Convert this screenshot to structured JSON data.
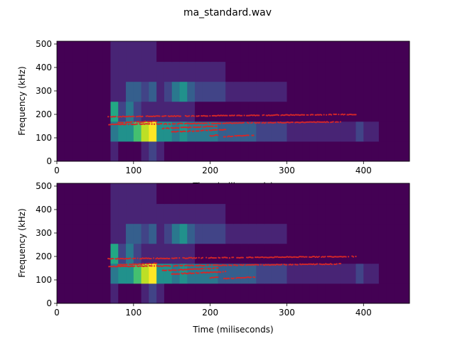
{
  "figure": {
    "title": "ma_standard.wav"
  },
  "colors": {
    "background_cell": "#440154",
    "overlay_points": "#d62728",
    "viridis": [
      "#440154",
      "#482475",
      "#414487",
      "#355f8d",
      "#2a788e",
      "#21918c",
      "#22a884",
      "#44bf70",
      "#7ad151",
      "#bddf26",
      "#fde725"
    ]
  },
  "chart_data": [
    {
      "type": "heatmap",
      "title": "",
      "xlabel": "Time (miliseconds)",
      "ylabel": "Frequency (kHz)",
      "xlim": [
        0,
        460
      ],
      "ylim": [
        0,
        512
      ],
      "xticks": [
        0,
        100,
        200,
        300,
        400
      ],
      "yticks": [
        0,
        100,
        200,
        300,
        400,
        500
      ],
      "grid": false,
      "time_bins": [
        5,
        15,
        25,
        35,
        45,
        55,
        65,
        75,
        85,
        95,
        105,
        115,
        125,
        135,
        145,
        155,
        165,
        175,
        185,
        195,
        205,
        215,
        225,
        235,
        245,
        255,
        265,
        275,
        285,
        295,
        305,
        315,
        325,
        335,
        345,
        355,
        365,
        375,
        385,
        395,
        405,
        415,
        425,
        435,
        445,
        455
      ],
      "freq_edges": [
        0,
        85,
        170,
        255,
        340,
        425,
        512
      ],
      "intensity": [
        [
          0,
          0,
          0,
          0,
          0,
          0,
          0,
          0.06,
          0.04,
          0.04,
          0.04,
          0.06,
          0.2,
          0.08,
          0.04,
          0.04,
          0.04,
          0.04,
          0.04,
          0.04,
          0.04,
          0.03,
          0.03,
          0.03,
          0.03,
          0.03,
          0.03,
          0.02,
          0.02,
          0.02,
          0.02,
          0.02,
          0.02,
          0.02,
          0.02,
          0.02,
          0.02,
          0.02,
          0.02,
          0.02,
          0.02,
          0,
          0,
          0,
          0,
          0
        ],
        [
          0,
          0,
          0,
          0,
          0,
          0,
          0,
          0.4,
          0.45,
          0.5,
          0.7,
          0.85,
          1.0,
          0.5,
          0.45,
          0.4,
          0.45,
          0.42,
          0.4,
          0.35,
          0.35,
          0.3,
          0.25,
          0.3,
          0.28,
          0.25,
          0.2,
          0.15,
          0.18,
          0.15,
          0.12,
          0.12,
          0.12,
          0.1,
          0.1,
          0.1,
          0.1,
          0.1,
          0.12,
          0.15,
          0.1,
          0.05,
          0,
          0,
          0,
          0
        ],
        [
          0,
          0,
          0,
          0,
          0,
          0,
          0,
          0.55,
          0.2,
          0.35,
          0.15,
          0.1,
          0.1,
          0.08,
          0.06,
          0.06,
          0.06,
          0.06,
          0.04,
          0.04,
          0.04,
          0.03,
          0.03,
          0.03,
          0.03,
          0.03,
          0.02,
          0.02,
          0.02,
          0.02,
          0.02,
          0.02,
          0.02,
          0.02,
          0.02,
          0.02,
          0.02,
          0.02,
          0.02,
          0.02,
          0.02,
          0,
          0,
          0,
          0,
          0
        ],
        [
          0,
          0,
          0,
          0,
          0,
          0,
          0,
          0.1,
          0.1,
          0.3,
          0.25,
          0.2,
          0.3,
          0.08,
          0.2,
          0.35,
          0.45,
          0.25,
          0.2,
          0.2,
          0.15,
          0.15,
          0.1,
          0.1,
          0.1,
          0.08,
          0.06,
          0.05,
          0.05,
          0.05,
          0.04,
          0.04,
          0.04,
          0.03,
          0.03,
          0.03,
          0.03,
          0.02,
          0.02,
          0.02,
          0.02,
          0,
          0,
          0,
          0,
          0
        ],
        [
          0,
          0,
          0,
          0,
          0,
          0,
          0,
          0.08,
          0.1,
          0.12,
          0.12,
          0.1,
          0.1,
          0.06,
          0.06,
          0.1,
          0.12,
          0.12,
          0.08,
          0.08,
          0.06,
          0.05,
          0.04,
          0.04,
          0.03,
          0.03,
          0.03,
          0.02,
          0.02,
          0.02,
          0.02,
          0.02,
          0.02,
          0.02,
          0.02,
          0.02,
          0.02,
          0.02,
          0.02,
          0.02,
          0.02,
          0,
          0,
          0,
          0,
          0
        ],
        [
          0,
          0,
          0,
          0,
          0,
          0,
          0,
          0.06,
          0.08,
          0.1,
          0.08,
          0.06,
          0.06,
          0.04,
          0.04,
          0.04,
          0.04,
          0.04,
          0.03,
          0.03,
          0.03,
          0.02,
          0.02,
          0.02,
          0.02,
          0.02,
          0.02,
          0.02,
          0.02,
          0.02,
          0.02,
          0.02,
          0.02,
          0.02,
          0.02,
          0.02,
          0.02,
          0.02,
          0.02,
          0.02,
          0.02,
          0,
          0,
          0,
          0,
          0
        ]
      ],
      "overlay_tracks": [
        {
          "t_start": 67,
          "t_end": 390,
          "f_start": 190,
          "f_end": 200
        },
        {
          "t_start": 68,
          "t_end": 370,
          "f_start": 157,
          "f_end": 168
        },
        {
          "t_start": 80,
          "t_end": 130,
          "f_start": 165,
          "f_end": 170
        },
        {
          "t_start": 138,
          "t_end": 210,
          "f_start": 140,
          "f_end": 150
        },
        {
          "t_start": 150,
          "t_end": 220,
          "f_start": 125,
          "f_end": 135
        },
        {
          "t_start": 200,
          "t_end": 210,
          "f_start": 108,
          "f_end": 112
        },
        {
          "t_start": 218,
          "t_end": 258,
          "f_start": 105,
          "f_end": 112
        }
      ]
    },
    {
      "type": "heatmap",
      "title": "",
      "xlabel": "Time (miliseconds)",
      "ylabel": "Frequency (kHz)",
      "xlim": [
        0,
        460
      ],
      "ylim": [
        0,
        512
      ],
      "xticks": [
        0,
        100,
        200,
        300,
        400
      ],
      "yticks": [
        0,
        100,
        200,
        300,
        400,
        500
      ],
      "grid": false,
      "time_bins": [
        5,
        15,
        25,
        35,
        45,
        55,
        65,
        75,
        85,
        95,
        105,
        115,
        125,
        135,
        145,
        155,
        165,
        175,
        185,
        195,
        205,
        215,
        225,
        235,
        245,
        255,
        265,
        275,
        285,
        295,
        305,
        315,
        325,
        335,
        345,
        355,
        365,
        375,
        385,
        395,
        405,
        415,
        425,
        435,
        445,
        455
      ],
      "freq_edges": [
        0,
        85,
        170,
        255,
        340,
        425,
        512
      ],
      "intensity": [
        [
          0,
          0,
          0,
          0,
          0,
          0,
          0,
          0.06,
          0.04,
          0.04,
          0.04,
          0.06,
          0.2,
          0.08,
          0.04,
          0.04,
          0.04,
          0.04,
          0.04,
          0.04,
          0.04,
          0.03,
          0.03,
          0.03,
          0.03,
          0.03,
          0.03,
          0.02,
          0.02,
          0.02,
          0.02,
          0.02,
          0.02,
          0.02,
          0.02,
          0.02,
          0.02,
          0.02,
          0.02,
          0.02,
          0.02,
          0,
          0,
          0,
          0,
          0
        ],
        [
          0,
          0,
          0,
          0,
          0,
          0,
          0,
          0.4,
          0.45,
          0.5,
          0.7,
          0.85,
          1.0,
          0.5,
          0.45,
          0.4,
          0.45,
          0.42,
          0.4,
          0.35,
          0.35,
          0.3,
          0.25,
          0.3,
          0.28,
          0.25,
          0.2,
          0.15,
          0.18,
          0.15,
          0.12,
          0.12,
          0.12,
          0.1,
          0.1,
          0.1,
          0.1,
          0.1,
          0.12,
          0.15,
          0.1,
          0.05,
          0,
          0,
          0,
          0
        ],
        [
          0,
          0,
          0,
          0,
          0,
          0,
          0,
          0.55,
          0.2,
          0.35,
          0.15,
          0.1,
          0.1,
          0.08,
          0.06,
          0.06,
          0.06,
          0.06,
          0.04,
          0.04,
          0.04,
          0.03,
          0.03,
          0.03,
          0.03,
          0.03,
          0.02,
          0.02,
          0.02,
          0.02,
          0.02,
          0.02,
          0.02,
          0.02,
          0.02,
          0.02,
          0.02,
          0.02,
          0.02,
          0.02,
          0.02,
          0,
          0,
          0,
          0,
          0
        ],
        [
          0,
          0,
          0,
          0,
          0,
          0,
          0,
          0.1,
          0.1,
          0.3,
          0.25,
          0.2,
          0.3,
          0.08,
          0.2,
          0.35,
          0.45,
          0.25,
          0.2,
          0.2,
          0.15,
          0.15,
          0.1,
          0.1,
          0.1,
          0.08,
          0.06,
          0.05,
          0.05,
          0.05,
          0.04,
          0.04,
          0.04,
          0.03,
          0.03,
          0.03,
          0.03,
          0.02,
          0.02,
          0.02,
          0.02,
          0,
          0,
          0,
          0,
          0
        ],
        [
          0,
          0,
          0,
          0,
          0,
          0,
          0,
          0.08,
          0.1,
          0.12,
          0.12,
          0.1,
          0.1,
          0.06,
          0.06,
          0.1,
          0.12,
          0.12,
          0.08,
          0.08,
          0.06,
          0.05,
          0.04,
          0.04,
          0.03,
          0.03,
          0.03,
          0.02,
          0.02,
          0.02,
          0.02,
          0.02,
          0.02,
          0.02,
          0.02,
          0.02,
          0.02,
          0.02,
          0.02,
          0.02,
          0.02,
          0,
          0,
          0,
          0,
          0
        ],
        [
          0,
          0,
          0,
          0,
          0,
          0,
          0,
          0.06,
          0.08,
          0.1,
          0.08,
          0.06,
          0.06,
          0.04,
          0.04,
          0.04,
          0.04,
          0.04,
          0.03,
          0.03,
          0.03,
          0.02,
          0.02,
          0.02,
          0.02,
          0.02,
          0.02,
          0.02,
          0.02,
          0.02,
          0.02,
          0.02,
          0.02,
          0.02,
          0.02,
          0.02,
          0.02,
          0.02,
          0.02,
          0.02,
          0.02,
          0,
          0,
          0,
          0,
          0
        ]
      ],
      "overlay_tracks": [
        {
          "t_start": 67,
          "t_end": 390,
          "f_start": 190,
          "f_end": 200
        },
        {
          "t_start": 68,
          "t_end": 370,
          "f_start": 157,
          "f_end": 168
        },
        {
          "t_start": 80,
          "t_end": 130,
          "f_start": 165,
          "f_end": 170
        },
        {
          "t_start": 138,
          "t_end": 210,
          "f_start": 140,
          "f_end": 150
        },
        {
          "t_start": 150,
          "t_end": 220,
          "f_start": 125,
          "f_end": 135
        },
        {
          "t_start": 200,
          "t_end": 210,
          "f_start": 108,
          "f_end": 112
        },
        {
          "t_start": 218,
          "t_end": 258,
          "f_start": 105,
          "f_end": 112
        }
      ]
    }
  ]
}
